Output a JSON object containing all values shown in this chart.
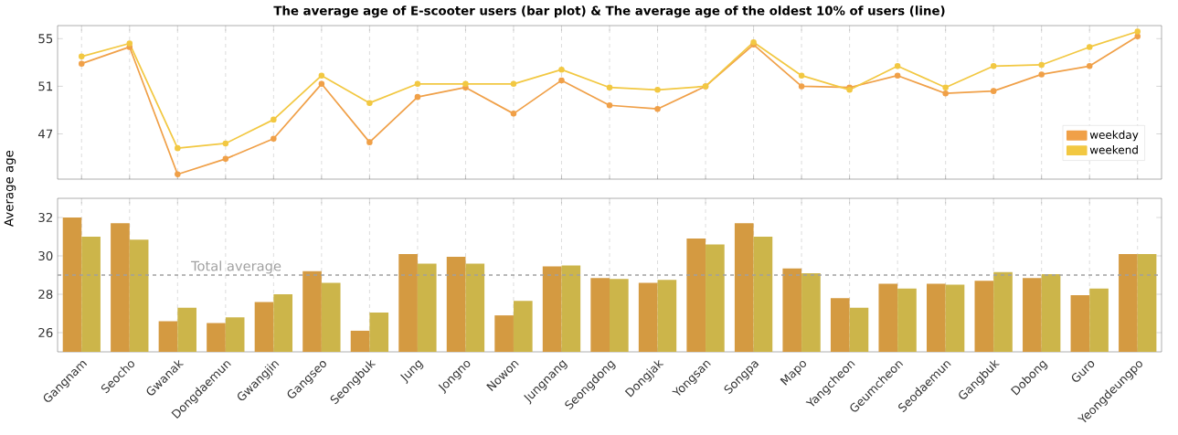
{
  "chart_data": [
    {
      "type": "line",
      "title": "The average age of E-scooter users (bar plot) & The average age of the oldest 10% of users (line)",
      "categories": [
        null,
        null,
        null,
        null,
        null,
        null,
        null,
        null,
        null,
        null,
        null,
        null,
        null,
        null,
        null,
        null,
        null,
        null,
        null,
        null,
        null,
        null,
        null
      ],
      "series": [
        {
          "name": "weekday",
          "color": "#f0a048",
          "values": [
            52.9,
            54.3,
            43.6,
            44.9,
            46.6,
            51.2,
            46.3,
            50.1,
            50.9,
            48.7,
            51.5,
            49.4,
            49.1,
            51.0,
            54.5,
            51.0,
            50.9,
            51.9,
            50.4,
            50.6,
            52.0,
            52.7,
            55.2
          ]
        },
        {
          "name": "weekend",
          "color": "#f2c842",
          "values": [
            53.5,
            54.6,
            45.8,
            46.2,
            48.2,
            51.9,
            49.6,
            51.2,
            51.2,
            51.2,
            52.4,
            50.9,
            50.7,
            51.0,
            54.7,
            51.9,
            50.7,
            52.7,
            50.9,
            52.7,
            52.8,
            54.3,
            55.6
          ]
        }
      ],
      "ylim": [
        43.2,
        56.1
      ],
      "yticks": [
        47,
        51,
        55
      ],
      "grid": "x",
      "legend": "bottom right",
      "marker": "circle",
      "tick_labels": "y"
    },
    {
      "type": "bar",
      "ylabel": "Average age",
      "categories": [
        "Gangnam",
        "Seocho",
        "Gwanak",
        "Dongdaemun",
        "Gwangjin",
        "Gangseo",
        "Seongbuk",
        "Jung",
        "Jongno",
        "Nowon",
        "Jungnang",
        "Seongdong",
        "Dongjak",
        "Yongsan",
        "Songpa",
        "Mapo",
        "Yangcheon",
        "Geumcheon",
        "Seodaemun",
        "Gangbuk",
        "Dobong",
        "Guro",
        "Yeongdeungpo"
      ],
      "series": [
        {
          "color": "#d49a41",
          "values": [
            32.0,
            31.7,
            26.6,
            26.5,
            27.6,
            29.2,
            26.1,
            30.1,
            29.95,
            26.9,
            29.45,
            28.85,
            28.6,
            30.9,
            31.7,
            29.35,
            27.8,
            28.55,
            28.55,
            28.7,
            28.85,
            27.95,
            30.1
          ]
        },
        {
          "color": "#ccb54a",
          "values": [
            31.0,
            30.85,
            27.3,
            26.8,
            28.0,
            28.6,
            27.05,
            29.6,
            29.6,
            27.65,
            29.5,
            28.8,
            28.75,
            30.6,
            31.0,
            29.1,
            27.3,
            28.3,
            28.5,
            29.15,
            29.05,
            28.3,
            30.1
          ]
        }
      ],
      "ylim": [
        25,
        33
      ],
      "yticks": [
        26,
        28,
        30,
        32
      ],
      "grid": "x",
      "ref_lines": [
        {
          "axis": "y",
          "value": 29,
          "label": "Total  average",
          "color": "#a0a0a0",
          "line_style": "dashed"
        }
      ]
    }
  ]
}
